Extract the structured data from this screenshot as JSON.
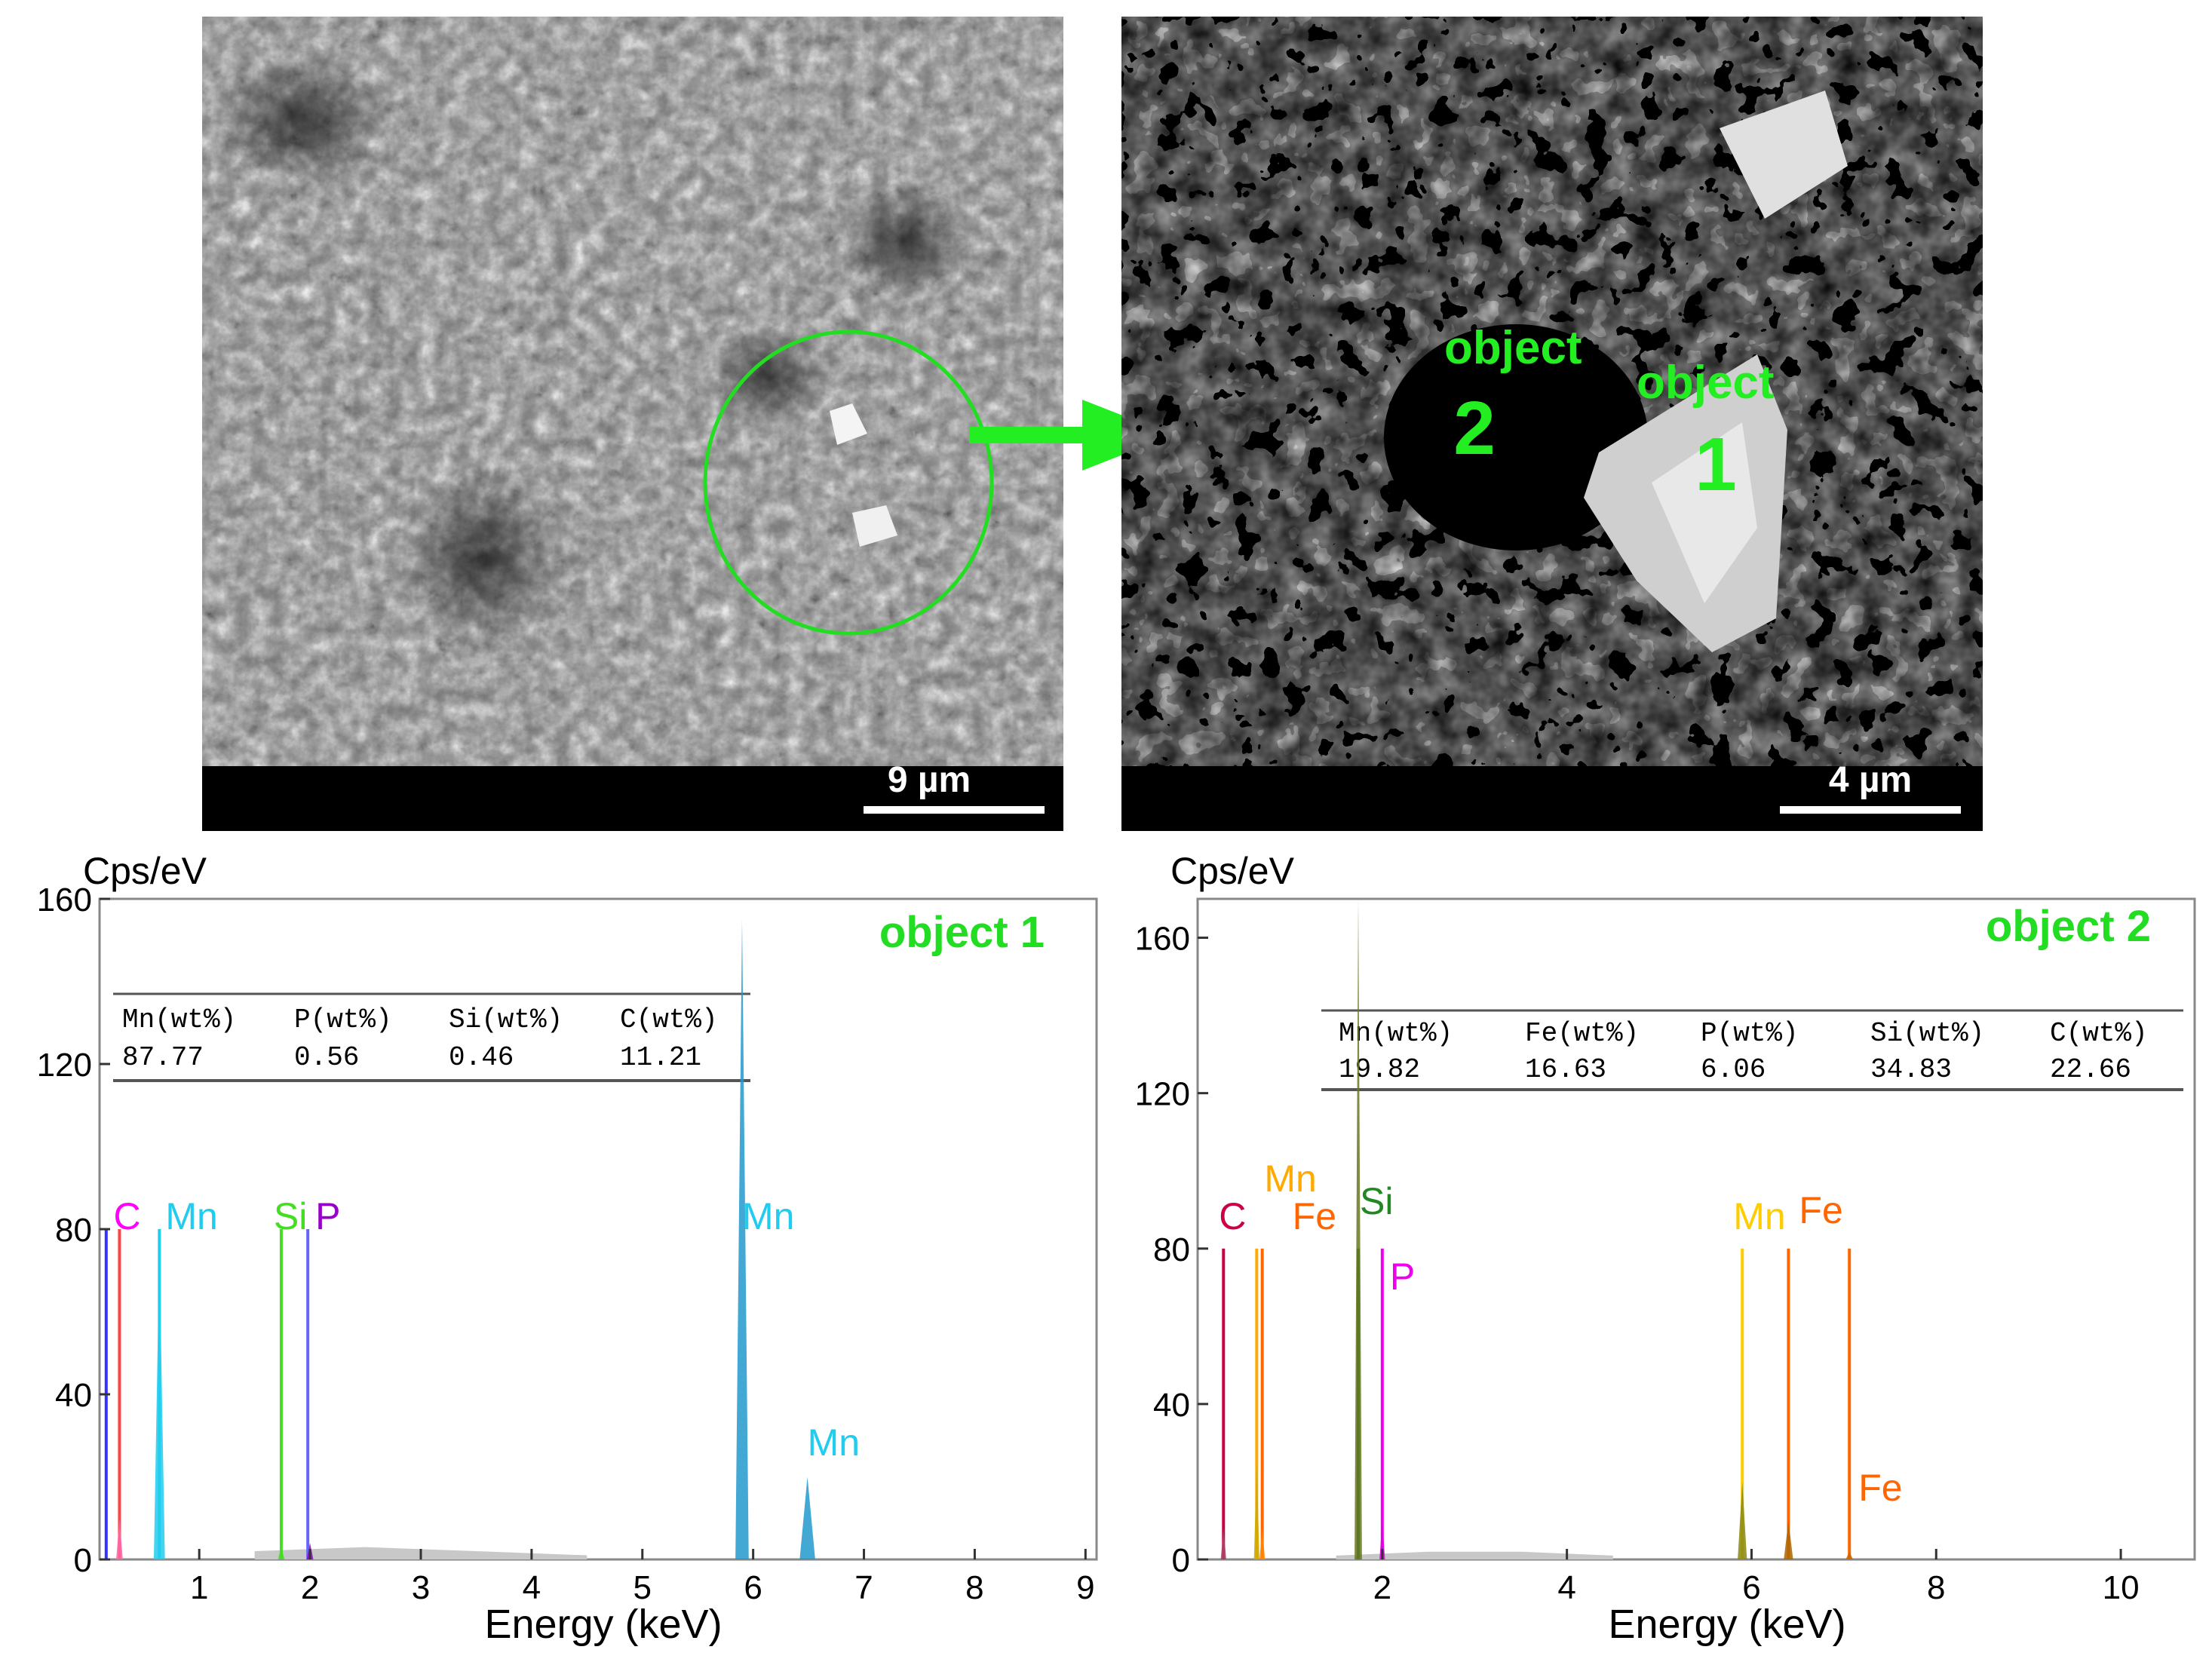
{
  "micrographs": [
    {
      "scale_label": "9 µm",
      "arrow_color": "#22dd22",
      "annotation_color": "#22dd22"
    },
    {
      "scale_label": "4 µm",
      "labels": [
        {
          "text": "object",
          "number": "2"
        },
        {
          "text": "object",
          "number": "1"
        }
      ]
    }
  ],
  "chart_data": [
    {
      "type": "line",
      "title": "object 1",
      "ylabel": "Cps/eV",
      "xlabel": "Energy (keV)",
      "xlim": [
        0.1,
        9.1
      ],
      "ylim": [
        0,
        160
      ],
      "x_ticks": [
        "1",
        "2",
        "3",
        "4",
        "5",
        "6",
        "7",
        "8",
        "9"
      ],
      "y_ticks": [
        "0",
        "40",
        "80",
        "120",
        "160"
      ],
      "table": {
        "headers": [
          "Mn(wt%)",
          "P(wt%)",
          "Si(wt%)",
          "C(wt%)"
        ],
        "values": [
          "87.77",
          "0.56",
          "0.46",
          "11.21"
        ]
      },
      "element_labels": [
        {
          "text": "C",
          "color": "#ff00ff",
          "x": 0.28
        },
        {
          "text": "Mn",
          "color": "#22ccee",
          "x": 0.64
        },
        {
          "text": "Si",
          "color": "#44dd22",
          "x": 1.74
        },
        {
          "text": "P",
          "color": "#9900cc",
          "x": 1.98
        },
        {
          "text": "Mn",
          "color": "#22ccee",
          "x": 5.9
        },
        {
          "text": "Mn",
          "color": "#22ccee",
          "x": 6.49
        }
      ],
      "marker_lines": [
        {
          "x": 0.16,
          "color": "#3333ff"
        },
        {
          "x": 0.28,
          "color": "#ff4444"
        },
        {
          "x": 0.64,
          "color": "#22ccee"
        },
        {
          "x": 1.74,
          "color": "#44dd22"
        },
        {
          "x": 1.98,
          "color": "#6666ff"
        }
      ],
      "peaks": [
        {
          "x": 0.28,
          "y": 10,
          "w": 0.03,
          "color": "#ff66aa"
        },
        {
          "x": 0.64,
          "y": 75,
          "w": 0.05,
          "color": "#22ccee"
        },
        {
          "x": 1.74,
          "y": 3,
          "w": 0.03,
          "color": "#44dd22"
        },
        {
          "x": 2.0,
          "y": 4,
          "w": 0.03,
          "color": "#9900cc"
        },
        {
          "x": 5.9,
          "y": 155,
          "w": 0.06,
          "color": "#2299cc"
        },
        {
          "x": 6.49,
          "y": 20,
          "w": 0.07,
          "color": "#2299cc"
        }
      ],
      "background": {
        "x": [
          1.5,
          2.5,
          3.5,
          4.5
        ],
        "y": [
          2,
          3,
          2,
          1
        ]
      }
    },
    {
      "type": "line",
      "title": "object 2",
      "ylabel": "Cps/eV",
      "xlabel": "Energy (keV)",
      "xlim": [
        0.0,
        10.8
      ],
      "ylim": [
        0,
        170
      ],
      "x_ticks": [
        "2",
        "4",
        "6",
        "8",
        "10"
      ],
      "y_ticks": [
        "0",
        "40",
        "80",
        "120",
        "160"
      ],
      "table": {
        "headers": [
          "Mn(wt%)",
          "Fe(wt%)",
          "P(wt%)",
          "Si(wt%)",
          "C(wt%)"
        ],
        "values": [
          "19.82",
          "16.63",
          "6.06",
          "34.83",
          "22.66"
        ]
      },
      "element_labels": [
        {
          "text": "Mn",
          "color": "#ffaa00",
          "x": 0.64
        },
        {
          "text": "C",
          "color": "#cc0044",
          "x": 0.28
        },
        {
          "text": "Fe",
          "color": "#ff6600",
          "x": 0.7
        },
        {
          "text": "Si",
          "color": "#228822",
          "x": 1.74
        },
        {
          "text": "P",
          "color": "#ee00ee",
          "x": 2.0
        },
        {
          "text": "Mn",
          "color": "#ffcc00",
          "x": 5.9
        },
        {
          "text": "Fe",
          "color": "#ff6600",
          "x": 6.4
        },
        {
          "text": "Fe",
          "color": "#ff6600",
          "x": 7.06
        }
      ],
      "marker_lines": [
        {
          "x": 0.28,
          "color": "#cc0044"
        },
        {
          "x": 0.64,
          "color": "#ffaa00"
        },
        {
          "x": 0.7,
          "color": "#ff6600"
        },
        {
          "x": 1.74,
          "color": "#228822"
        },
        {
          "x": 2.0,
          "color": "#ee00ee"
        },
        {
          "x": 5.9,
          "color": "#ffcc00"
        },
        {
          "x": 6.4,
          "color": "#ff6600"
        },
        {
          "x": 7.06,
          "color": "#ff6600"
        }
      ],
      "peaks": [
        {
          "x": 0.28,
          "y": 8,
          "w": 0.03,
          "color": "#aa4466"
        },
        {
          "x": 0.64,
          "y": 25,
          "w": 0.03,
          "color": "#ccaa00"
        },
        {
          "x": 0.7,
          "y": 8,
          "w": 0.03,
          "color": "#ff8800"
        },
        {
          "x": 1.74,
          "y": 170,
          "w": 0.04,
          "color": "#667722"
        },
        {
          "x": 2.0,
          "y": 10,
          "w": 0.03,
          "color": "#dd00dd"
        },
        {
          "x": 5.9,
          "y": 20,
          "w": 0.05,
          "color": "#888811"
        },
        {
          "x": 6.4,
          "y": 10,
          "w": 0.05,
          "color": "#aa6600"
        },
        {
          "x": 7.06,
          "y": 2,
          "w": 0.04,
          "color": "#cc6600"
        }
      ],
      "background": {
        "x": [
          1.5,
          2.5,
          3.5,
          4.5
        ],
        "y": [
          1,
          2,
          2,
          1
        ]
      }
    }
  ]
}
